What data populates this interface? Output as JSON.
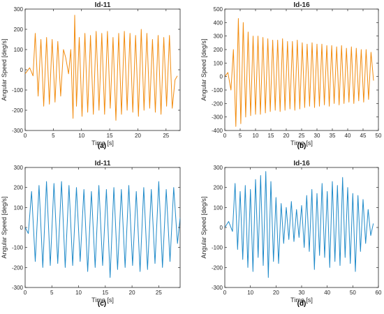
{
  "chart_data": [
    {
      "type": "line",
      "panel": "(a)",
      "title": "Id-11",
      "xlabel": "Time [s]",
      "ylabel": "Angular Speed [deg/s]",
      "xlim": [
        0,
        27.5
      ],
      "ylim": [
        -300,
        300
      ],
      "xticks": [
        0,
        5,
        10,
        15,
        20,
        25
      ],
      "yticks": [
        -300,
        -200,
        -100,
        0,
        100,
        200,
        300
      ],
      "grid": false,
      "series": [
        {
          "color": "#f28c0f",
          "x": [
            0,
            0.8,
            1.4,
            1.8,
            2.3,
            2.8,
            3.3,
            3.8,
            4.3,
            4.8,
            5.3,
            5.8,
            6.3,
            6.8,
            7.2,
            7.7,
            8.1,
            8.5,
            8.8,
            9.1,
            9.6,
            10.1,
            10.6,
            11.1,
            11.6,
            12.1,
            12.6,
            13.1,
            13.6,
            14.1,
            14.6,
            15.1,
            15.6,
            16.1,
            16.6,
            17.1,
            17.6,
            18.1,
            18.6,
            19.1,
            19.6,
            20.1,
            20.6,
            21.1,
            21.6,
            22.1,
            22.6,
            23.1,
            23.6,
            24.1,
            24.6,
            25.1,
            25.6,
            26.1,
            26.6,
            27.0
          ],
          "y": [
            -20,
            10,
            -30,
            180,
            -130,
            150,
            -180,
            160,
            -170,
            150,
            -160,
            140,
            -130,
            100,
            60,
            -20,
            100,
            -240,
            270,
            -180,
            160,
            -230,
            180,
            -210,
            170,
            -220,
            190,
            -200,
            180,
            -220,
            190,
            -190,
            160,
            -250,
            180,
            -220,
            190,
            -200,
            180,
            -210,
            170,
            -230,
            200,
            -200,
            180,
            -190,
            150,
            -210,
            170,
            -220,
            160,
            -180,
            170,
            -190,
            -50,
            -30
          ]
        }
      ]
    },
    {
      "type": "line",
      "panel": "(b)",
      "title": "Id-16",
      "xlabel": "Time [s]",
      "ylabel": "Angular Speed [deg/s]",
      "xlim": [
        0,
        50
      ],
      "ylim": [
        -400,
        500
      ],
      "xticks": [
        0,
        5,
        10,
        15,
        20,
        25,
        30,
        35,
        40,
        45,
        50
      ],
      "yticks": [
        -400,
        -300,
        -200,
        -100,
        0,
        100,
        200,
        300,
        400,
        500
      ],
      "grid": false,
      "series": [
        {
          "color": "#f28c0f",
          "x": [
            0,
            1.0,
            2.0,
            2.8,
            3.6,
            4.4,
            5.2,
            6.0,
            6.8,
            7.6,
            8.4,
            9.2,
            10.0,
            10.8,
            11.6,
            12.4,
            13.2,
            14.0,
            14.8,
            15.6,
            16.4,
            17.2,
            18.0,
            18.8,
            19.6,
            20.4,
            21.2,
            22.0,
            22.8,
            23.6,
            24.4,
            25.2,
            26.0,
            26.8,
            27.6,
            28.4,
            29.2,
            30.0,
            30.8,
            31.6,
            32.4,
            33.2,
            34.0,
            34.8,
            35.6,
            36.4,
            37.2,
            38.0,
            38.8,
            39.6,
            40.4,
            41.2,
            42.0,
            42.8,
            43.6,
            44.4,
            45.2,
            46.0,
            46.8,
            47.6,
            48.4
          ],
          "y": [
            0,
            30,
            -100,
            200,
            -370,
            430,
            -350,
            400,
            -300,
            330,
            -290,
            300,
            -280,
            300,
            -280,
            290,
            -270,
            280,
            -260,
            270,
            -250,
            270,
            -260,
            280,
            -250,
            260,
            -240,
            260,
            -250,
            270,
            -240,
            250,
            -230,
            240,
            -220,
            250,
            -230,
            240,
            -220,
            240,
            -210,
            230,
            -220,
            230,
            -200,
            220,
            -210,
            230,
            -200,
            210,
            -190,
            220,
            -200,
            210,
            -180,
            200,
            -190,
            200,
            -170,
            180,
            -30
          ]
        }
      ]
    },
    {
      "type": "line",
      "panel": "(c)",
      "title": "Id-11",
      "xlabel": "Time [s]",
      "ylabel": "Angular Speed [deg/s]",
      "xlim": [
        0,
        29
      ],
      "ylim": [
        -300,
        300
      ],
      "xticks": [
        0,
        5,
        10,
        15,
        20,
        25
      ],
      "yticks": [
        -300,
        -200,
        -100,
        0,
        100,
        200,
        300
      ],
      "grid": false,
      "series": [
        {
          "color": "#1f8ac9",
          "x": [
            0,
            0.6,
            1.2,
            1.9,
            2.6,
            3.3,
            4.0,
            4.7,
            5.4,
            6.1,
            6.8,
            7.5,
            8.2,
            8.9,
            9.6,
            10.3,
            11.0,
            11.7,
            12.4,
            13.1,
            13.8,
            14.5,
            15.2,
            15.9,
            16.6,
            17.3,
            18.0,
            18.7,
            19.4,
            20.1,
            20.8,
            21.5,
            22.2,
            22.9,
            23.6,
            24.3,
            25.0,
            25.7,
            26.4,
            27.1,
            27.8,
            28.5,
            29.0
          ],
          "y": [
            0,
            -30,
            180,
            -170,
            210,
            -200,
            230,
            -190,
            220,
            -180,
            230,
            -200,
            210,
            -190,
            200,
            -170,
            190,
            -220,
            180,
            -200,
            210,
            -190,
            190,
            -250,
            200,
            -210,
            190,
            -200,
            210,
            -190,
            180,
            -220,
            200,
            -210,
            190,
            -180,
            230,
            -200,
            190,
            -170,
            200,
            -80,
            50
          ]
        }
      ]
    },
    {
      "type": "line",
      "panel": "(d)",
      "title": "Id-16",
      "xlabel": "Time [s]",
      "ylabel": "Angular Speed [deg/s]",
      "xlim": [
        0,
        60
      ],
      "ylim": [
        -300,
        300
      ],
      "xticks": [
        0,
        10,
        20,
        30,
        40,
        50,
        60
      ],
      "yticks": [
        -300,
        -200,
        -100,
        0,
        100,
        200,
        300
      ],
      "grid": false,
      "series": [
        {
          "color": "#1f8ac9",
          "x": [
            0,
            1.5,
            3,
            4,
            5,
            6,
            7,
            8,
            9,
            10,
            11,
            12,
            13,
            14,
            15,
            16,
            17,
            18,
            19,
            20,
            21,
            22,
            23,
            24,
            25,
            26,
            27,
            28,
            29,
            30,
            31,
            32,
            33,
            34,
            35,
            36,
            37,
            38,
            39,
            40,
            41,
            42,
            43,
            44,
            45,
            46,
            47,
            48,
            49,
            50,
            51,
            52,
            53,
            54,
            55,
            56,
            57,
            58
          ],
          "y": [
            0,
            30,
            -20,
            220,
            -110,
            180,
            -160,
            210,
            -200,
            190,
            -220,
            240,
            -150,
            260,
            -190,
            280,
            -250,
            230,
            -170,
            150,
            -180,
            120,
            -80,
            100,
            -60,
            130,
            -70,
            90,
            -50,
            110,
            -100,
            160,
            -120,
            190,
            -210,
            170,
            -140,
            220,
            -150,
            180,
            -200,
            230,
            -170,
            210,
            -190,
            250,
            -150,
            200,
            -180,
            170,
            -220,
            160,
            -120,
            140,
            -80,
            90,
            -40,
            20
          ]
        }
      ]
    }
  ],
  "captions": [
    "(a)",
    "(b)",
    "(c)",
    "(d)"
  ]
}
